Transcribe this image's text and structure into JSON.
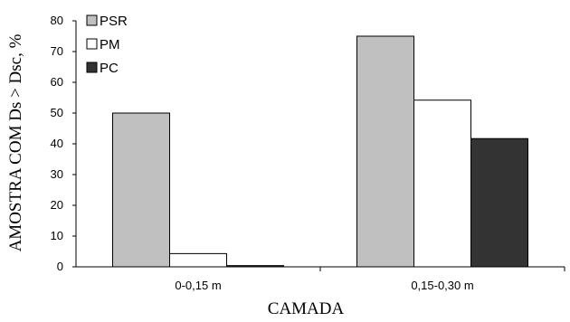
{
  "chart_data": {
    "type": "bar",
    "title": "",
    "xlabel": "CAMADA",
    "ylabel": "AMOSTRA COM Ds > Dsc, %",
    "categories": [
      "0-0,15 m",
      "0,15-0,30 m"
    ],
    "series": [
      {
        "name": "PSR",
        "values": [
          50,
          75
        ],
        "color": "#c0c0c0"
      },
      {
        "name": "PM",
        "values": [
          4.3,
          54.2
        ],
        "color": "#ffffff"
      },
      {
        "name": "PC",
        "values": [
          0.4,
          41.7
        ],
        "color": "#333333"
      }
    ],
    "ylim": [
      0,
      80
    ],
    "yticks": [
      0,
      10,
      20,
      30,
      40,
      50,
      60,
      70,
      80
    ],
    "grid": false,
    "legend_position": "top-left"
  }
}
